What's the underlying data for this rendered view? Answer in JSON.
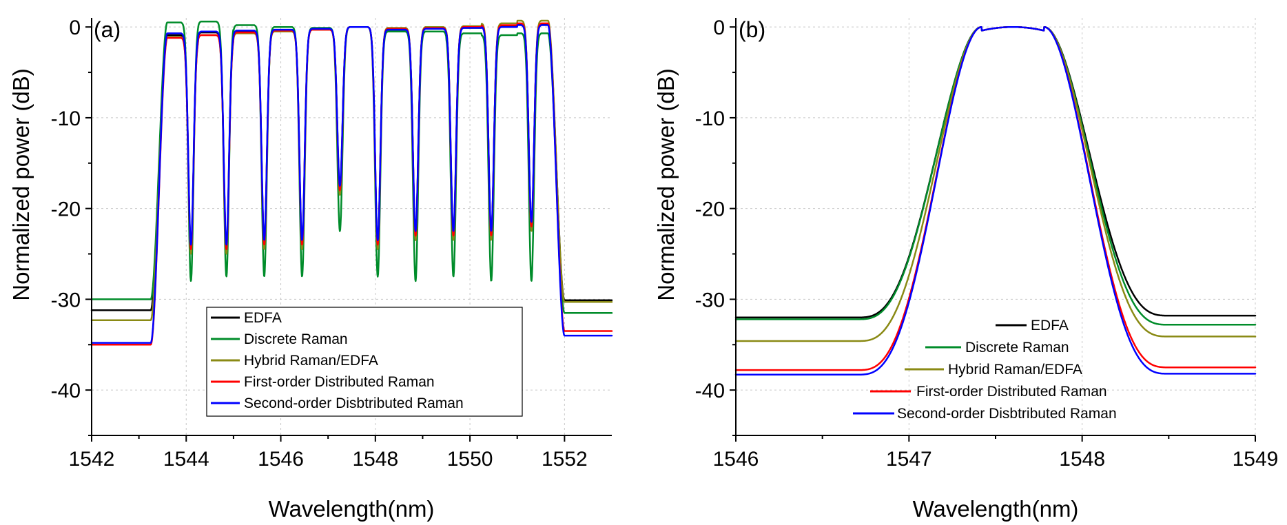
{
  "chart_data": [
    {
      "type": "line",
      "panel_label": "(a)",
      "xlabel": "Wavelength(nm)",
      "ylabel": "Normalized power (dB)",
      "xlim": [
        1542,
        1553
      ],
      "ylim": [
        -45,
        1
      ],
      "xticks": [
        1542,
        1544,
        1546,
        1548,
        1550,
        1552
      ],
      "yticks": [
        0,
        -10,
        -20,
        -30,
        -40
      ],
      "grid": true,
      "legend_position": "bottom-center",
      "legend_boxed": true,
      "channel_centers": [
        1543.85,
        1544.6,
        1545.35,
        1546.1,
        1546.85,
        1547.6,
        1548.35,
        1549.1,
        1549.85,
        1550.6,
        1551.35
      ],
      "dip_wavelengths": [
        1544.1,
        1544.85,
        1545.65,
        1546.45,
        1547.25,
        1548.05,
        1548.85,
        1549.65,
        1550.45,
        1551.3
      ],
      "series": [
        {
          "name": "EDFA",
          "color": "#000000",
          "floor_left": -31.2,
          "floor_right": -30.1,
          "channel_peaks": [
            -0.9,
            -0.6,
            -0.5,
            -0.4,
            -0.2,
            0.0,
            -0.3,
            -0.2,
            -0.1,
            0.1,
            0.3
          ],
          "dip_depths": [
            -24.5,
            -24.5,
            -24,
            -24,
            -18,
            -24,
            -23,
            -23,
            -23,
            -22
          ]
        },
        {
          "name": "Discrete Raman",
          "color": "#008c2a",
          "floor_left": -30.0,
          "floor_right": -31.5,
          "channel_peaks": [
            0.5,
            0.6,
            0.2,
            0.0,
            -0.1,
            0.0,
            -0.5,
            -0.5,
            -0.7,
            -0.9,
            -0.7
          ],
          "dip_depths": [
            -28,
            -27.5,
            -27.5,
            -27.5,
            -22.5,
            -27.5,
            -28,
            -27.5,
            -28,
            -28
          ]
        },
        {
          "name": "Hybrid Raman/EDFA",
          "color": "#8a8a14",
          "floor_left": -32.3,
          "floor_right": -30.3,
          "channel_peaks": [
            -1.1,
            -0.9,
            -0.7,
            -0.5,
            -0.3,
            0.0,
            -0.1,
            0.0,
            0.1,
            0.4,
            0.7
          ],
          "dip_depths": [
            -25,
            -25,
            -24.5,
            -24.5,
            -18.5,
            -24.5,
            -23.5,
            -23.5,
            -23.5,
            -22.5
          ]
        },
        {
          "name": "First-order Distributed Raman",
          "color": "#ff0000",
          "floor_left": -35.0,
          "floor_right": -33.5,
          "channel_peaks": [
            -1.2,
            -0.9,
            -0.6,
            -0.4,
            -0.3,
            0.0,
            -0.2,
            -0.1,
            0.0,
            0.2,
            0.4
          ],
          "dip_depths": [
            -24.5,
            -24.5,
            -24,
            -24,
            -18,
            -24,
            -23,
            -23,
            -23,
            -22
          ]
        },
        {
          "name": "Second-order Disbtributed Raman",
          "color": "#0000ff",
          "floor_left": -34.8,
          "floor_right": -34.0,
          "channel_peaks": [
            -0.7,
            -0.5,
            -0.4,
            -0.3,
            -0.2,
            0.0,
            -0.3,
            -0.2,
            -0.1,
            0.0,
            0.2
          ],
          "dip_depths": [
            -24,
            -24,
            -23.5,
            -23.5,
            -17.5,
            -23.5,
            -22.5,
            -22.5,
            -22.5,
            -21.5
          ]
        }
      ]
    },
    {
      "type": "line",
      "panel_label": "(b)",
      "xlabel": "Wavelength(nm)",
      "ylabel": "Normalized power (dB)",
      "xlim": [
        1546,
        1549
      ],
      "ylim": [
        -45,
        1
      ],
      "xticks": [
        1546,
        1547,
        1548,
        1549
      ],
      "yticks": [
        0,
        -10,
        -20,
        -30,
        -40
      ],
      "grid": true,
      "legend_position": "bottom-center",
      "legend_boxed": false,
      "passband": {
        "center": 1547.6,
        "peak": 0.0,
        "top_half_width": 0.18,
        "edge_low": 1547.15,
        "edge_high": 1548.05
      },
      "series": [
        {
          "name": "EDFA",
          "color": "#000000",
          "floor_left": -32.0,
          "floor_right": -31.8
        },
        {
          "name": "Discrete Raman",
          "color": "#008c2a",
          "floor_left": -32.2,
          "floor_right": -32.8
        },
        {
          "name": "Hybrid Raman/EDFA",
          "color": "#8a8a14",
          "floor_left": -34.6,
          "floor_right": -34.1
        },
        {
          "name": "First-order Distributed Raman",
          "color": "#ff0000",
          "floor_left": -37.8,
          "floor_right": -37.5
        },
        {
          "name": "Second-order Disbtributed Raman",
          "color": "#0000ff",
          "floor_left": -38.3,
          "floor_right": -38.2
        }
      ]
    }
  ]
}
